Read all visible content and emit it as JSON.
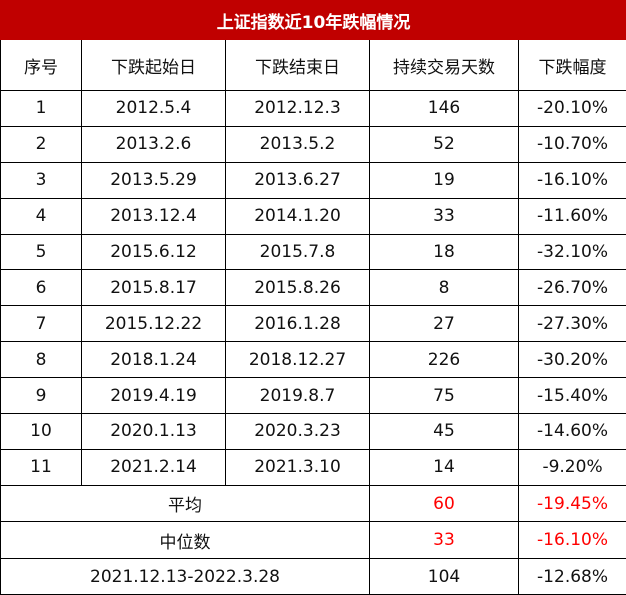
{
  "title": "上证指数近10年跌幅情况",
  "headers": [
    "序号",
    "下跌起始日",
    "下跌结束日",
    "持续交易天数",
    "下跌幅度"
  ],
  "rows": [
    {
      "no": "1",
      "start": "2012.5.4",
      "end": "2012.12.3",
      "days": "146",
      "drop": "-20.10%"
    },
    {
      "no": "2",
      "start": "2013.2.6",
      "end": "2013.5.2",
      "days": "52",
      "drop": "-10.70%"
    },
    {
      "no": "3",
      "start": "2013.5.29",
      "end": "2013.6.27",
      "days": "19",
      "drop": "-16.10%"
    },
    {
      "no": "4",
      "start": "2013.12.4",
      "end": "2014.1.20",
      "days": "33",
      "drop": "-11.60%"
    },
    {
      "no": "5",
      "start": "2015.6.12",
      "end": "2015.7.8",
      "days": "18",
      "drop": "-32.10%"
    },
    {
      "no": "6",
      "start": "2015.8.17",
      "end": "2015.8.26",
      "days": "8",
      "drop": "-26.70%"
    },
    {
      "no": "7",
      "start": "2015.12.22",
      "end": "2016.1.28",
      "days": "27",
      "drop": "-27.30%"
    },
    {
      "no": "8",
      "start": "2018.1.24",
      "end": "2018.12.27",
      "days": "226",
      "drop": "-30.20%"
    },
    {
      "no": "9",
      "start": "2019.4.19",
      "end": "2019.8.7",
      "days": "75",
      "drop": "-15.40%"
    },
    {
      "no": "10",
      "start": "2020.1.13",
      "end": "2020.3.23",
      "days": "45",
      "drop": "-14.60%"
    },
    {
      "no": "11",
      "start": "2021.2.14",
      "end": "2021.3.10",
      "days": "14",
      "drop": "-9.20%"
    }
  ],
  "average": {
    "label": "平均",
    "days": "60",
    "drop": "-19.45%"
  },
  "median": {
    "label": "中位数",
    "days": "33",
    "drop": "-16.10%"
  },
  "current": {
    "label": "2021.12.13-2022.3.28",
    "days": "104",
    "drop": "-12.68%"
  },
  "colors": {
    "title_bg": "#c00000",
    "highlight": "#ff0000",
    "border": "#000000"
  }
}
